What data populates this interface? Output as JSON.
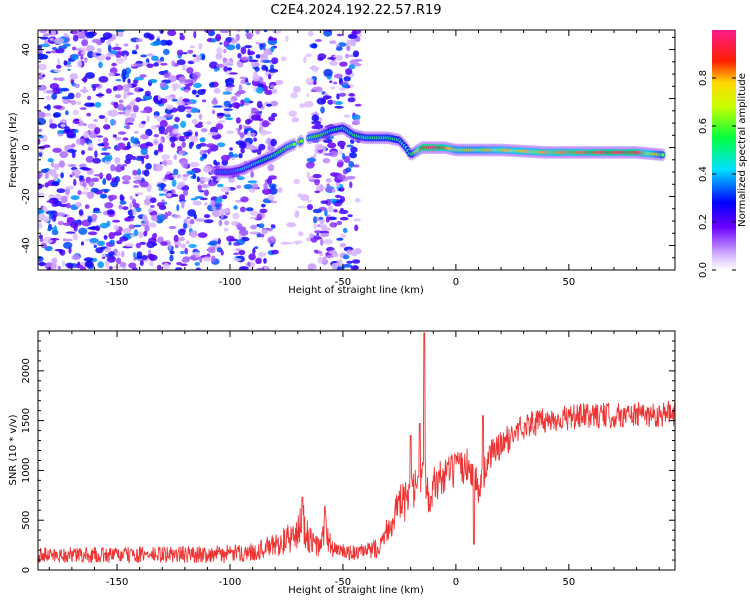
{
  "title": "C2E4.2024.192.22.57.R19",
  "chart_data": [
    {
      "type": "heatmap",
      "xlabel": "Height of straight line (km)",
      "ylabel": "Frequency (Hz)",
      "xlim": [
        -185,
        97
      ],
      "ylim": [
        -50,
        48
      ],
      "xticks": [
        -150,
        -100,
        -50,
        0,
        50
      ],
      "yticks": [
        -40,
        -20,
        0,
        20,
        40
      ],
      "colorbar": {
        "label": "Normalized spectral amplitude",
        "range": [
          0,
          1
        ],
        "ticks": [
          0.0,
          0.2,
          0.4,
          0.6,
          0.8
        ],
        "colormap": "rainbow"
      },
      "noise_region_x": [
        -185,
        -43
      ],
      "gap_x": [
        -80,
        -65
      ],
      "signal_track": {
        "x": [
          -106,
          -100,
          -95,
          -90,
          -85,
          -80,
          -75,
          -70,
          -65,
          -60,
          -55,
          -50,
          -45,
          -40,
          -35,
          -30,
          -25,
          -22,
          -20,
          -15,
          -10,
          -5,
          0,
          10,
          20,
          40,
          60,
          80,
          92
        ],
        "y": [
          -10,
          -10,
          -9,
          -7,
          -5,
          -3,
          0,
          2,
          4,
          5,
          7,
          8,
          5,
          4,
          4,
          4,
          3,
          0,
          -3,
          0,
          0,
          0,
          -1,
          -1,
          -1,
          -2,
          -2,
          -2,
          -3
        ],
        "amplitude": [
          0.35,
          0.35,
          0.4,
          0.45,
          0.5,
          0.55,
          0.6,
          0.65,
          0.6,
          0.6,
          0.5,
          0.5,
          0.55,
          0.55,
          0.55,
          0.55,
          0.5,
          0.5,
          0.5,
          0.9,
          0.95,
          0.85,
          0.7,
          0.7,
          0.75,
          0.8,
          0.85,
          0.9,
          0.6
        ]
      }
    },
    {
      "type": "line",
      "xlabel": "Height of straight line (km)",
      "ylabel": "SNR (10 * v/v)",
      "xlim": [
        -185,
        97
      ],
      "ylim": [
        0,
        2400
      ],
      "xticks": [
        -150,
        -100,
        -50,
        0,
        50
      ],
      "yticks": [
        0,
        500,
        1000,
        1500,
        2000
      ],
      "series": [
        {
          "color": "#ee3333",
          "envelope": {
            "x": [
              -185,
              -150,
              -100,
              -90,
              -80,
              -75,
              -70,
              -68,
              -65,
              -60,
              -58,
              -55,
              -50,
              -45,
              -40,
              -35,
              -30,
              -25,
              -20,
              -18,
              -15,
              -14,
              -12,
              -10,
              -5,
              0,
              5,
              8,
              10,
              15,
              20,
              25,
              30,
              40,
              50,
              60,
              70,
              80,
              90,
              97
            ],
            "mean": [
              150,
              150,
              160,
              180,
              250,
              300,
              360,
              500,
              300,
              220,
              420,
              220,
              180,
              170,
              180,
              220,
              420,
              650,
              720,
              800,
              820,
              1000,
              750,
              850,
              950,
              1000,
              1050,
              1000,
              800,
              1150,
              1250,
              1350,
              1450,
              1500,
              1530,
              1550,
              1550,
              1560,
              1560,
              1580
            ],
            "spread": [
              80,
              80,
              90,
              90,
              120,
              150,
              180,
              250,
              150,
              100,
              200,
              100,
              80,
              80,
              80,
              100,
              150,
              200,
              220,
              220,
              250,
              200,
              200,
              200,
              200,
              180,
              180,
              180,
              150,
              150,
              150,
              140,
              140,
              130,
              130,
              130,
              130,
              130,
              130,
              130
            ]
          },
          "peaks": [
            {
              "x": -68,
              "y": 730
            },
            {
              "x": -58,
              "y": 640
            },
            {
              "x": -14,
              "y": 2380
            },
            {
              "x": -16,
              "y": 1470
            },
            {
              "x": -20,
              "y": 1350
            },
            {
              "x": 8,
              "y": 260
            },
            {
              "x": 12,
              "y": 1550
            }
          ]
        }
      ]
    }
  ]
}
